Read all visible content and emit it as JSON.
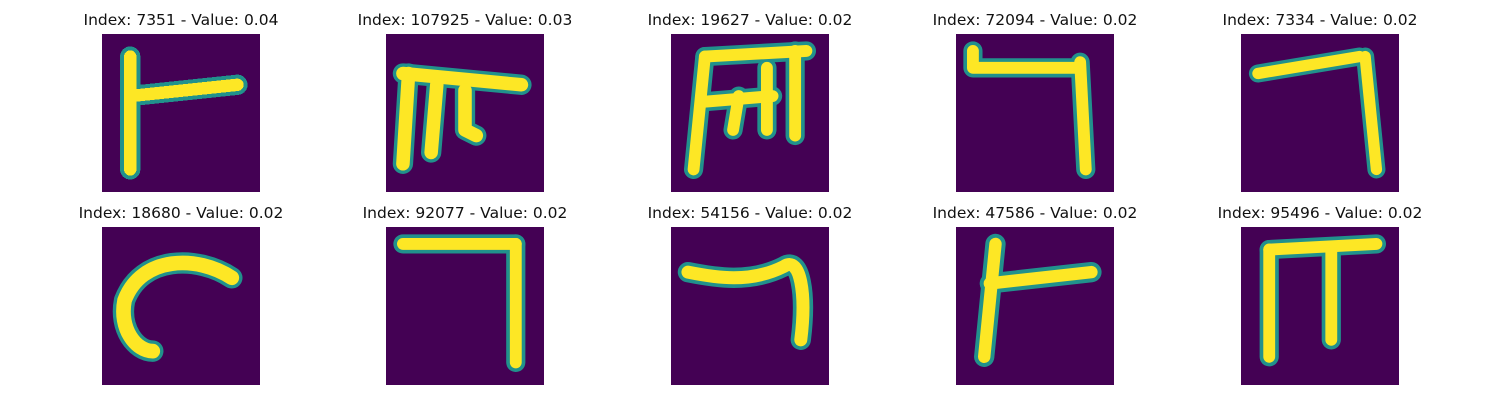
{
  "colormap": {
    "background": "#440154",
    "foreground": "#fde725",
    "edge": "#21918c"
  },
  "panels": [
    {
      "title": "Index: 7351 - Value: 0.04",
      "glyph": "glyph-1-icon"
    },
    {
      "title": "Index: 107925 - Value: 0.03",
      "glyph": "glyph-2-icon"
    },
    {
      "title": "Index: 19627 - Value: 0.02",
      "glyph": "glyph-3-icon"
    },
    {
      "title": "Index: 72094 - Value: 0.02",
      "glyph": "glyph-4-icon"
    },
    {
      "title": "Index: 7334 - Value: 0.02",
      "glyph": "glyph-5-icon"
    },
    {
      "title": "Index: 18680 - Value: 0.02",
      "glyph": "glyph-6-icon"
    },
    {
      "title": "Index: 92077 - Value: 0.02",
      "glyph": "glyph-7-icon"
    },
    {
      "title": "Index: 54156 - Value: 0.02",
      "glyph": "glyph-8-icon"
    },
    {
      "title": "Index: 47586 - Value: 0.02",
      "glyph": "glyph-9-icon"
    },
    {
      "title": "Index: 95496 - Value: 0.02",
      "glyph": "glyph-10-icon"
    }
  ]
}
